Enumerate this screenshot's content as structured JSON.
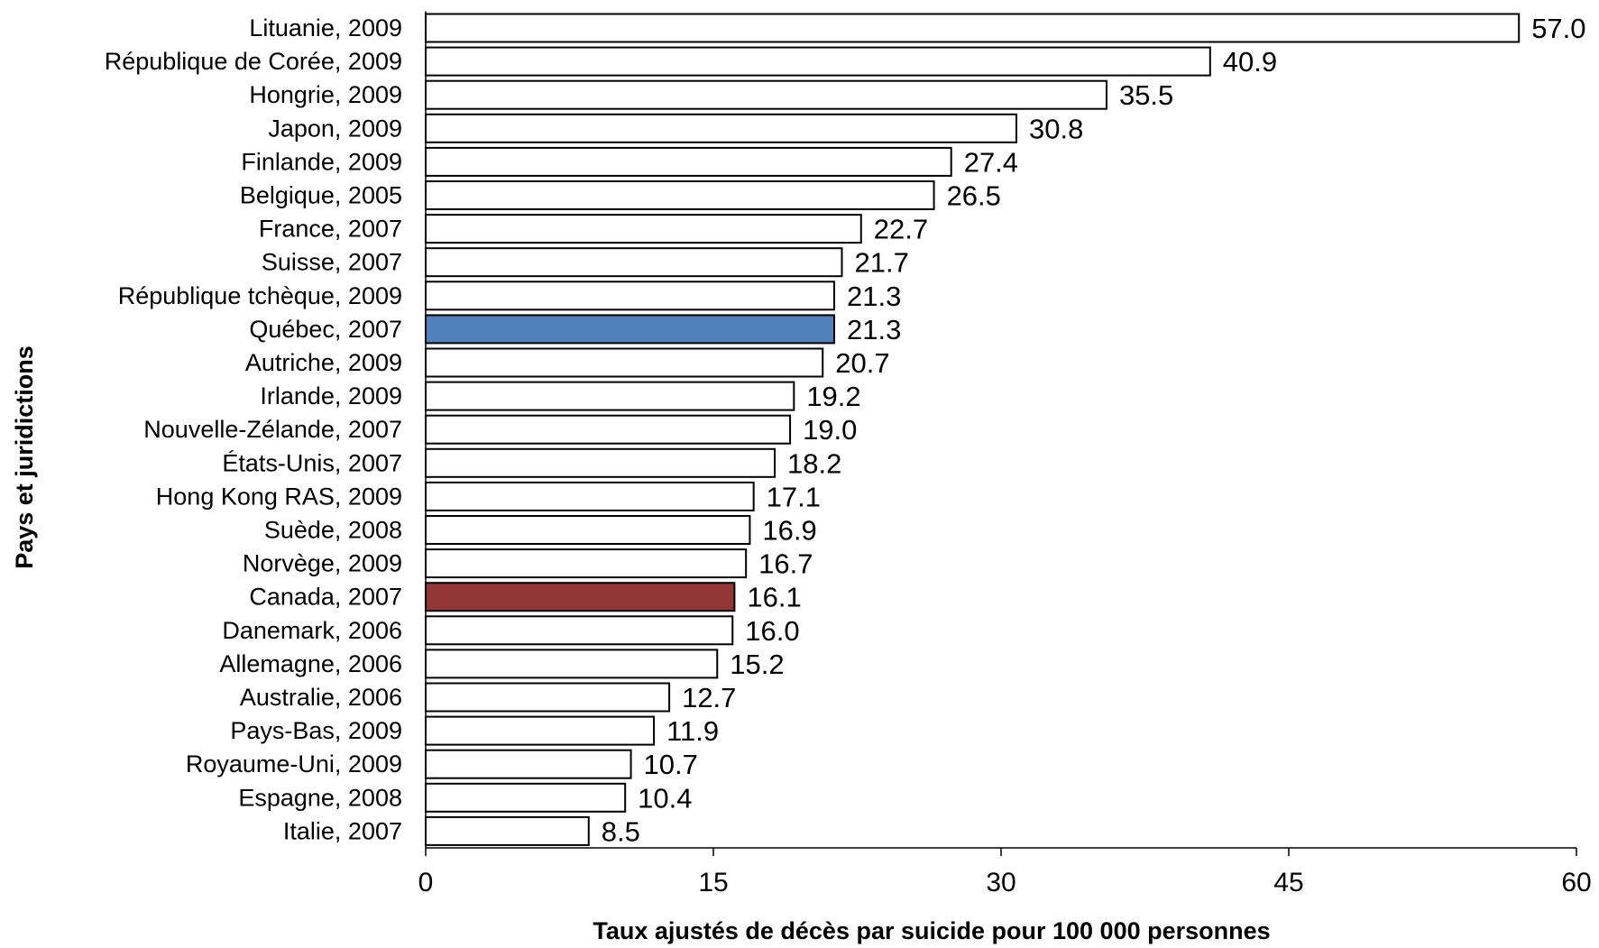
{
  "chart_data": {
    "type": "bar",
    "orientation": "horizontal",
    "title": "",
    "xlabel": "Taux ajustés de décès par suicide pour 100 000 personnes",
    "ylabel": "Pays et juridictions",
    "xlim": [
      0,
      60
    ],
    "xticks": [
      "0",
      "15",
      "30",
      "45",
      "60"
    ],
    "grid": false,
    "legend": "none",
    "categories": [
      "Lituanie, 2009",
      "République de Corée, 2009",
      "Hongrie, 2009",
      "Japon, 2009",
      "Finlande, 2009",
      "Belgique, 2005",
      "France, 2007",
      "Suisse, 2007",
      "République tchèque, 2009",
      "Québec, 2007",
      "Autriche, 2009",
      "Irlande, 2009",
      "Nouvelle-Zélande, 2007",
      "États-Unis, 2007",
      "Hong Kong RAS, 2009",
      "Suède, 2008",
      "Norvège, 2009",
      "Canada, 2007",
      "Danemark, 2006",
      "Allemagne, 2006",
      "Australie, 2006",
      "Pays-Bas, 2009",
      "Royaume-Uni, 2009",
      "Espagne, 2008",
      "Italie, 2007"
    ],
    "values": [
      57.0,
      40.9,
      35.5,
      30.8,
      27.4,
      26.5,
      22.7,
      21.7,
      21.3,
      21.3,
      20.7,
      19.2,
      19.0,
      18.2,
      17.1,
      16.9,
      16.7,
      16.1,
      16.0,
      15.2,
      12.7,
      11.9,
      10.7,
      10.4,
      8.5
    ],
    "value_labels": [
      "57.0",
      "40.9",
      "35.5",
      "30.8",
      "27.4",
      "26.5",
      "22.7",
      "21.7",
      "21.3",
      "21.3",
      "20.7",
      "19.2",
      "19.0",
      "18.2",
      "17.1",
      "16.9",
      "16.7",
      "16.1",
      "16.0",
      "15.2",
      "12.7",
      "11.9",
      "10.7",
      "10.4",
      "8.5"
    ],
    "colors": {
      "default_fill": "#ffffff",
      "default_stroke": "#000000",
      "highlights": {
        "Québec, 2007": "#4f81bd",
        "Canada, 2007": "#943634"
      }
    }
  }
}
